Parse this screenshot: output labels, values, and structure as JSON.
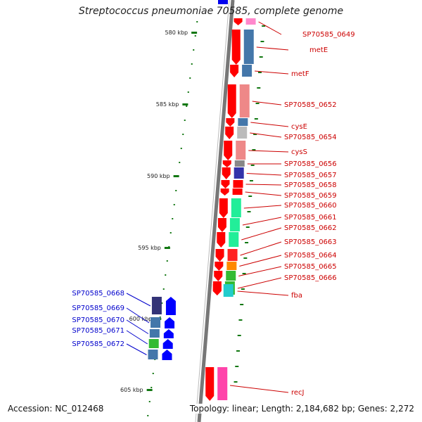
{
  "title": "Streptococcus pneumoniae 70585, complete genome",
  "footer": {
    "accession": "Accession: NC_012468",
    "topology": "Topology: linear; Length: 2,184,682 bp; Genes: 2,272"
  },
  "colors": {
    "forward_gene": "#ff0000",
    "reverse_gene": "#0000ff",
    "forward_label": "#cc0000",
    "reverse_label": "#0000cc",
    "tick": "#117711",
    "backbone": "#777777"
  },
  "ruler_kbp": [
    "580 kbp",
    "585 kbp",
    "590 kbp",
    "595 kbp",
    "600 kbp",
    "605 kbp"
  ],
  "forward_labels": [
    "SP70585_0649",
    "metE",
    "metF",
    "SP70585_0652",
    "cysE",
    "SP70585_0654",
    "cysS",
    "SP70585_0656",
    "SP70585_0657",
    "SP70585_0658",
    "SP70585_0659",
    "SP70585_0660",
    "SP70585_0661",
    "SP70585_0662",
    "SP70585_0663",
    "SP70585_0664",
    "SP70585_0665",
    "SP70585_0666",
    "fba",
    "recJ"
  ],
  "reverse_labels": [
    "SP70585_0668",
    "SP70585_0669",
    "SP70585_0670",
    "SP70585_0671",
    "SP70585_0672"
  ]
}
